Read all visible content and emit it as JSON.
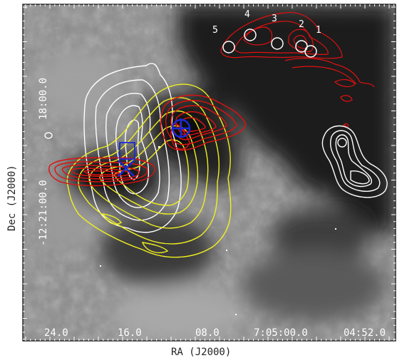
{
  "figure": {
    "xlabel": "RA (J2000)",
    "ylabel": "Dec (J2000)",
    "ra_ticks": [
      "24.0",
      "16.0",
      "08.0",
      "7:05:00.0",
      "04:52.0"
    ],
    "dec_ticks": [
      "18:00.0",
      "-12:21:00.0"
    ],
    "source_labels": [
      "5",
      "4",
      "3",
      "2",
      "1"
    ]
  },
  "colors": {
    "frame": "#000000",
    "contour_red": "#e01010",
    "contour_yellow": "#f0f020",
    "contour_white": "#ffffff",
    "marker_blue": "#1a2ad6"
  },
  "icons": {
    "circle_marker": "circle-icon",
    "cross_marker": "cross-icon",
    "square_marker": "square-icon"
  }
}
